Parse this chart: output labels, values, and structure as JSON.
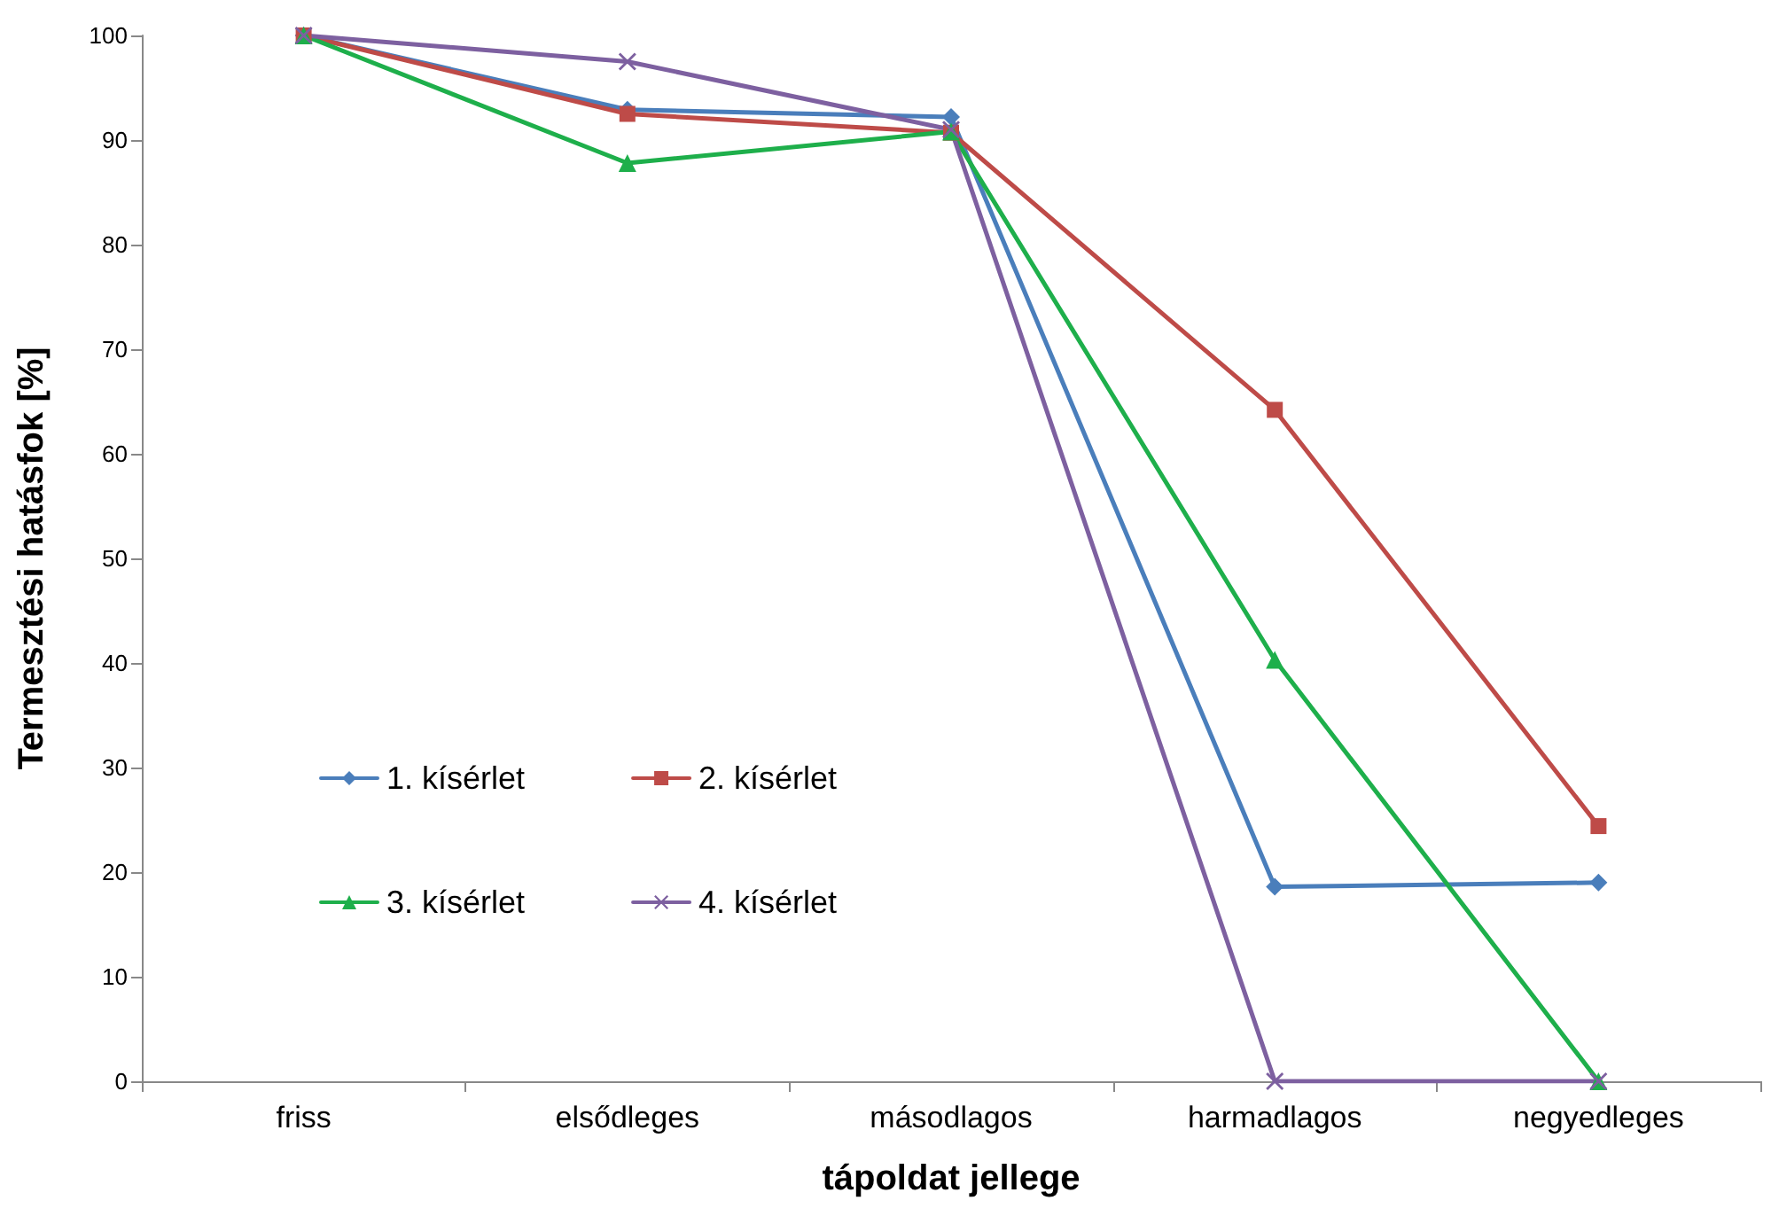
{
  "chart_data": {
    "type": "line",
    "xlabel": "tápoldat jellege",
    "ylabel": "Termesztési hatásfok [%]",
    "categories": [
      "friss",
      "elsődleges",
      "másodlagos",
      "harmadlagos",
      "negyedleges"
    ],
    "series": [
      {
        "name": "1. kísérlet",
        "color": "#4a7ebb",
        "marker": "diamond",
        "values": [
          100,
          92.9,
          92.2,
          18.6,
          19.0
        ]
      },
      {
        "name": "2. kísérlet",
        "color": "#be4b48",
        "marker": "square",
        "values": [
          100,
          92.5,
          90.7,
          64.2,
          24.4
        ]
      },
      {
        "name": "3. kísérlet",
        "color": "#1eaf4b",
        "marker": "triangle",
        "values": [
          100,
          87.8,
          90.8,
          40.3,
          0
        ]
      },
      {
        "name": "4. kísérlet",
        "color": "#7d60a0",
        "marker": "cross",
        "values": [
          100,
          97.5,
          91.0,
          0,
          0
        ]
      }
    ],
    "ylim": [
      0,
      100
    ],
    "yticks": [
      0,
      10,
      20,
      30,
      40,
      50,
      60,
      70,
      80,
      90,
      100
    ],
    "grid": false,
    "legend": "left"
  }
}
